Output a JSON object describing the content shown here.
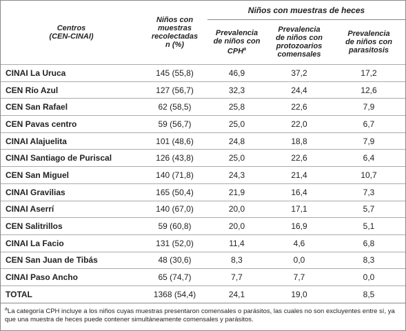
{
  "header": {
    "group_title": "Niños con muestras de heces",
    "columns": [
      {
        "lines": [
          "Centros",
          "(CEN-CINAI)"
        ]
      },
      {
        "lines": [
          "Niños con",
          "muestras",
          "recolectadas",
          "n (%)"
        ]
      },
      {
        "lines": [
          "Prevalencia",
          "de niños con",
          "CPH"
        ],
        "sup": "a"
      },
      {
        "lines": [
          "Prevalencia",
          "de niños con",
          "protozoarios",
          "comensales"
        ]
      },
      {
        "lines": [
          "Prevalencia",
          "de niños con",
          "parasitosis"
        ]
      }
    ]
  },
  "table": {
    "rows": [
      [
        "CINAI La Uruca",
        "145 (55,8)",
        "46,9",
        "37,2",
        "17,2"
      ],
      [
        "CEN Río Azul",
        "127 (56,7)",
        "32,3",
        "24,4",
        "12,6"
      ],
      [
        "CEN San Rafael",
        "62 (58,5)",
        "25,8",
        "22,6",
        "7,9"
      ],
      [
        "CEN Pavas centro",
        "59 (56,7)",
        "25,0",
        "22,0",
        "6,7"
      ],
      [
        "CINAI Alajuelita",
        "101 (48,6)",
        "24,8",
        "18,8",
        "7,9"
      ],
      [
        "CINAI Santiago de Puriscal",
        "126 (43,8)",
        "25,0",
        "22,6",
        "6,4"
      ],
      [
        "CEN San Miguel",
        "140 (71,8)",
        "24,3",
        "21,4",
        "10,7"
      ],
      [
        "CINAI Gravilias",
        "165 (50,4)",
        "21,9",
        "16,4",
        "7,3"
      ],
      [
        "CINAI Aserrí",
        "140 (67,0)",
        "20,0",
        "17,1",
        "5,7"
      ],
      [
        "CEN Salitrillos",
        "59 (60,8)",
        "20,0",
        "16,9",
        "5,1"
      ],
      [
        "CINAI La Facio",
        "131 (52,0)",
        "11,4",
        "4,6",
        "6,8"
      ],
      [
        "CEN San Juan de Tibás",
        "48 (30,6)",
        "8,3",
        "0,0",
        "8,3"
      ],
      [
        "CINAI Paso Ancho",
        "65 (74,7)",
        "7,7",
        "7,7",
        "0,0"
      ],
      [
        "TOTAL",
        "1368 (54,4)",
        "24,1",
        "19,0",
        "8,5"
      ]
    ]
  },
  "footnote": {
    "mark": "a",
    "text": "La categoría CPH incluye a los niños cuyas muestras presentaron comensales o parásitos, las cuales no son excluyentes entre sí, ya que una muestra de heces puede contener simultáneamente comensales y parásitos."
  }
}
